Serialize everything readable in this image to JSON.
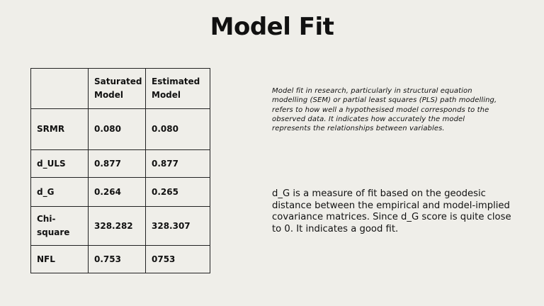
{
  "title": "Model Fit",
  "table": {
    "headers": [
      "",
      "Saturated Model",
      "Estimated Model"
    ],
    "rows": [
      [
        "SRMR",
        "0.080",
        "0.080"
      ],
      [
        "d_ULS",
        "0.877",
        "0.877"
      ],
      [
        "d_G",
        "0.264",
        "0.265"
      ],
      [
        "Chi-square",
        "328.282",
        "328.307"
      ],
      [
        "NFL",
        "0.753",
        "0753"
      ]
    ]
  },
  "description": "Model fit in research, particularly in structural equation modelling (SEM) or partial least squares (PLS) path modelling, refers to how well a hypothesised model corresponds to the observed data. It indicates how accurately the model represents the relationships between variables.",
  "dg_note": "d_G is a measure of fit based on the geodesic distance between the empirical and model-implied covariance matrices. Since d_G score is quite close to 0. It indicates a good fit."
}
